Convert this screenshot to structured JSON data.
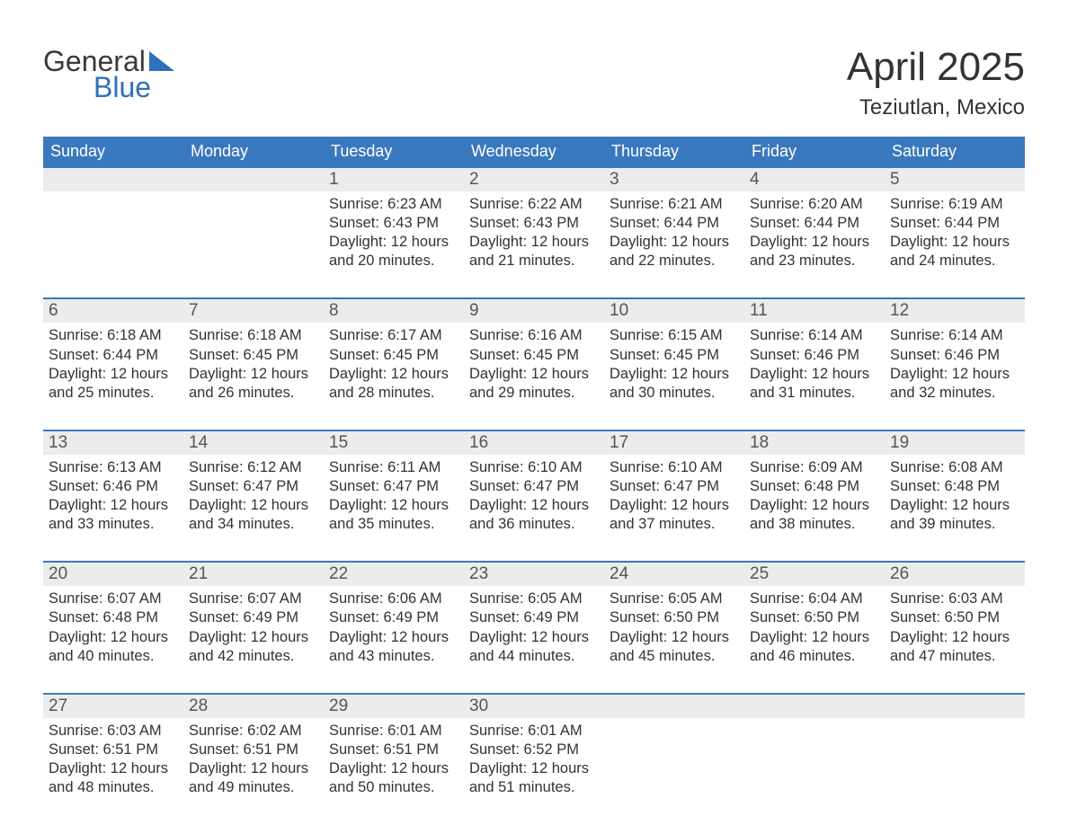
{
  "logo": {
    "word1": "General",
    "word2": "Blue"
  },
  "title": "April 2025",
  "location": "Teziutlan, Mexico",
  "colors": {
    "header_bg": "#3a78bd",
    "daynum_bg": "#ececec",
    "text": "#333333",
    "logo_blue": "#2f71b8"
  },
  "weekdays": [
    "Sunday",
    "Monday",
    "Tuesday",
    "Wednesday",
    "Thursday",
    "Friday",
    "Saturday"
  ],
  "weeks": [
    [
      {
        "day": "",
        "sunrise": "",
        "sunset": "",
        "daylight1": "",
        "daylight2": ""
      },
      {
        "day": "",
        "sunrise": "",
        "sunset": "",
        "daylight1": "",
        "daylight2": ""
      },
      {
        "day": "1",
        "sunrise": "Sunrise: 6:23 AM",
        "sunset": "Sunset: 6:43 PM",
        "daylight1": "Daylight: 12 hours",
        "daylight2": "and 20 minutes."
      },
      {
        "day": "2",
        "sunrise": "Sunrise: 6:22 AM",
        "sunset": "Sunset: 6:43 PM",
        "daylight1": "Daylight: 12 hours",
        "daylight2": "and 21 minutes."
      },
      {
        "day": "3",
        "sunrise": "Sunrise: 6:21 AM",
        "sunset": "Sunset: 6:44 PM",
        "daylight1": "Daylight: 12 hours",
        "daylight2": "and 22 minutes."
      },
      {
        "day": "4",
        "sunrise": "Sunrise: 6:20 AM",
        "sunset": "Sunset: 6:44 PM",
        "daylight1": "Daylight: 12 hours",
        "daylight2": "and 23 minutes."
      },
      {
        "day": "5",
        "sunrise": "Sunrise: 6:19 AM",
        "sunset": "Sunset: 6:44 PM",
        "daylight1": "Daylight: 12 hours",
        "daylight2": "and 24 minutes."
      }
    ],
    [
      {
        "day": "6",
        "sunrise": "Sunrise: 6:18 AM",
        "sunset": "Sunset: 6:44 PM",
        "daylight1": "Daylight: 12 hours",
        "daylight2": "and 25 minutes."
      },
      {
        "day": "7",
        "sunrise": "Sunrise: 6:18 AM",
        "sunset": "Sunset: 6:45 PM",
        "daylight1": "Daylight: 12 hours",
        "daylight2": "and 26 minutes."
      },
      {
        "day": "8",
        "sunrise": "Sunrise: 6:17 AM",
        "sunset": "Sunset: 6:45 PM",
        "daylight1": "Daylight: 12 hours",
        "daylight2": "and 28 minutes."
      },
      {
        "day": "9",
        "sunrise": "Sunrise: 6:16 AM",
        "sunset": "Sunset: 6:45 PM",
        "daylight1": "Daylight: 12 hours",
        "daylight2": "and 29 minutes."
      },
      {
        "day": "10",
        "sunrise": "Sunrise: 6:15 AM",
        "sunset": "Sunset: 6:45 PM",
        "daylight1": "Daylight: 12 hours",
        "daylight2": "and 30 minutes."
      },
      {
        "day": "11",
        "sunrise": "Sunrise: 6:14 AM",
        "sunset": "Sunset: 6:46 PM",
        "daylight1": "Daylight: 12 hours",
        "daylight2": "and 31 minutes."
      },
      {
        "day": "12",
        "sunrise": "Sunrise: 6:14 AM",
        "sunset": "Sunset: 6:46 PM",
        "daylight1": "Daylight: 12 hours",
        "daylight2": "and 32 minutes."
      }
    ],
    [
      {
        "day": "13",
        "sunrise": "Sunrise: 6:13 AM",
        "sunset": "Sunset: 6:46 PM",
        "daylight1": "Daylight: 12 hours",
        "daylight2": "and 33 minutes."
      },
      {
        "day": "14",
        "sunrise": "Sunrise: 6:12 AM",
        "sunset": "Sunset: 6:47 PM",
        "daylight1": "Daylight: 12 hours",
        "daylight2": "and 34 minutes."
      },
      {
        "day": "15",
        "sunrise": "Sunrise: 6:11 AM",
        "sunset": "Sunset: 6:47 PM",
        "daylight1": "Daylight: 12 hours",
        "daylight2": "and 35 minutes."
      },
      {
        "day": "16",
        "sunrise": "Sunrise: 6:10 AM",
        "sunset": "Sunset: 6:47 PM",
        "daylight1": "Daylight: 12 hours",
        "daylight2": "and 36 minutes."
      },
      {
        "day": "17",
        "sunrise": "Sunrise: 6:10 AM",
        "sunset": "Sunset: 6:47 PM",
        "daylight1": "Daylight: 12 hours",
        "daylight2": "and 37 minutes."
      },
      {
        "day": "18",
        "sunrise": "Sunrise: 6:09 AM",
        "sunset": "Sunset: 6:48 PM",
        "daylight1": "Daylight: 12 hours",
        "daylight2": "and 38 minutes."
      },
      {
        "day": "19",
        "sunrise": "Sunrise: 6:08 AM",
        "sunset": "Sunset: 6:48 PM",
        "daylight1": "Daylight: 12 hours",
        "daylight2": "and 39 minutes."
      }
    ],
    [
      {
        "day": "20",
        "sunrise": "Sunrise: 6:07 AM",
        "sunset": "Sunset: 6:48 PM",
        "daylight1": "Daylight: 12 hours",
        "daylight2": "and 40 minutes."
      },
      {
        "day": "21",
        "sunrise": "Sunrise: 6:07 AM",
        "sunset": "Sunset: 6:49 PM",
        "daylight1": "Daylight: 12 hours",
        "daylight2": "and 42 minutes."
      },
      {
        "day": "22",
        "sunrise": "Sunrise: 6:06 AM",
        "sunset": "Sunset: 6:49 PM",
        "daylight1": "Daylight: 12 hours",
        "daylight2": "and 43 minutes."
      },
      {
        "day": "23",
        "sunrise": "Sunrise: 6:05 AM",
        "sunset": "Sunset: 6:49 PM",
        "daylight1": "Daylight: 12 hours",
        "daylight2": "and 44 minutes."
      },
      {
        "day": "24",
        "sunrise": "Sunrise: 6:05 AM",
        "sunset": "Sunset: 6:50 PM",
        "daylight1": "Daylight: 12 hours",
        "daylight2": "and 45 minutes."
      },
      {
        "day": "25",
        "sunrise": "Sunrise: 6:04 AM",
        "sunset": "Sunset: 6:50 PM",
        "daylight1": "Daylight: 12 hours",
        "daylight2": "and 46 minutes."
      },
      {
        "day": "26",
        "sunrise": "Sunrise: 6:03 AM",
        "sunset": "Sunset: 6:50 PM",
        "daylight1": "Daylight: 12 hours",
        "daylight2": "and 47 minutes."
      }
    ],
    [
      {
        "day": "27",
        "sunrise": "Sunrise: 6:03 AM",
        "sunset": "Sunset: 6:51 PM",
        "daylight1": "Daylight: 12 hours",
        "daylight2": "and 48 minutes."
      },
      {
        "day": "28",
        "sunrise": "Sunrise: 6:02 AM",
        "sunset": "Sunset: 6:51 PM",
        "daylight1": "Daylight: 12 hours",
        "daylight2": "and 49 minutes."
      },
      {
        "day": "29",
        "sunrise": "Sunrise: 6:01 AM",
        "sunset": "Sunset: 6:51 PM",
        "daylight1": "Daylight: 12 hours",
        "daylight2": "and 50 minutes."
      },
      {
        "day": "30",
        "sunrise": "Sunrise: 6:01 AM",
        "sunset": "Sunset: 6:52 PM",
        "daylight1": "Daylight: 12 hours",
        "daylight2": "and 51 minutes."
      },
      {
        "day": "",
        "sunrise": "",
        "sunset": "",
        "daylight1": "",
        "daylight2": ""
      },
      {
        "day": "",
        "sunrise": "",
        "sunset": "",
        "daylight1": "",
        "daylight2": ""
      },
      {
        "day": "",
        "sunrise": "",
        "sunset": "",
        "daylight1": "",
        "daylight2": ""
      }
    ]
  ]
}
